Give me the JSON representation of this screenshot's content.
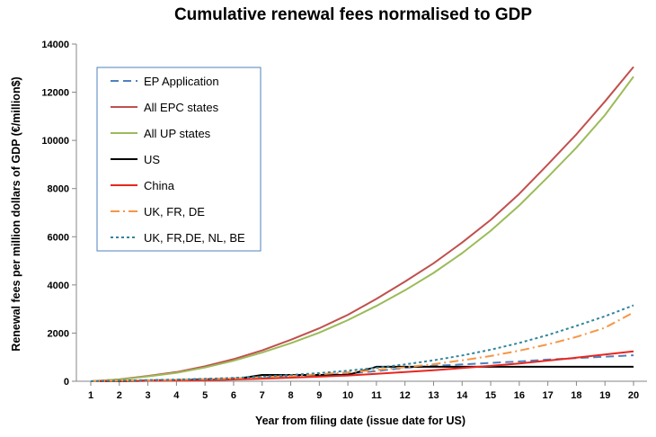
{
  "chart_data": {
    "type": "line",
    "title": "Cumulative renewal fees normalised to GDP",
    "xlabel": "Year from filing date (issue date for US)",
    "ylabel": "Renewal fees per million dollars of GDP  (€/million$)",
    "x": [
      1,
      2,
      3,
      4,
      5,
      6,
      7,
      8,
      9,
      10,
      11,
      12,
      13,
      14,
      15,
      16,
      17,
      18,
      19,
      20
    ],
    "xlim": [
      1,
      20
    ],
    "ylim": [
      0,
      14000
    ],
    "yticks": [
      0,
      2000,
      4000,
      6000,
      8000,
      10000,
      12000,
      14000
    ],
    "grid": false,
    "legend_position": "top-left",
    "series": [
      {
        "name": "EP Application",
        "color": "#4F81BD",
        "dash": "dash",
        "values": [
          0,
          20,
          40,
          60,
          90,
          120,
          160,
          200,
          240,
          320,
          420,
          560,
          640,
          700,
          760,
          820,
          900,
          960,
          1020,
          1080
        ]
      },
      {
        "name": "All EPC states",
        "color": "#C0504D",
        "dash": "solid",
        "values": [
          0,
          80,
          220,
          380,
          620,
          920,
          1280,
          1720,
          2200,
          2760,
          3420,
          4140,
          4900,
          5760,
          6700,
          7780,
          9000,
          10250,
          11620,
          13050
        ]
      },
      {
        "name": "All UP states",
        "color": "#9BBB59",
        "dash": "solid",
        "values": [
          0,
          70,
          200,
          350,
          570,
          850,
          1190,
          1580,
          2020,
          2540,
          3130,
          3780,
          4500,
          5320,
          6250,
          7300,
          8480,
          9700,
          11050,
          12650
        ]
      },
      {
        "name": "US",
        "color": "#000000",
        "dash": "solid",
        "values": [
          0,
          0,
          20,
          40,
          60,
          80,
          260,
          260,
          260,
          260,
          600,
          600,
          600,
          600,
          600,
          600,
          600,
          600,
          600,
          600
        ]
      },
      {
        "name": "China",
        "color": "#E8261E",
        "dash": "solid",
        "values": [
          0,
          10,
          20,
          30,
          40,
          70,
          110,
          150,
          190,
          240,
          310,
          380,
          460,
          550,
          640,
          740,
          860,
          980,
          1110,
          1240
        ]
      },
      {
        "name": "UK, FR, DE",
        "color": "#F79646",
        "dash": "dashdot",
        "values": [
          0,
          20,
          40,
          60,
          90,
          120,
          170,
          220,
          290,
          370,
          470,
          580,
          710,
          870,
          1050,
          1270,
          1530,
          1840,
          2220,
          2860
        ]
      },
      {
        "name": "UK, FR,DE, NL, BE",
        "color": "#31859C",
        "dash": "dot",
        "values": [
          0,
          25,
          50,
          70,
          100,
          140,
          190,
          260,
          340,
          440,
          560,
          700,
          870,
          1070,
          1310,
          1590,
          1920,
          2300,
          2700,
          3150
        ]
      }
    ]
  }
}
